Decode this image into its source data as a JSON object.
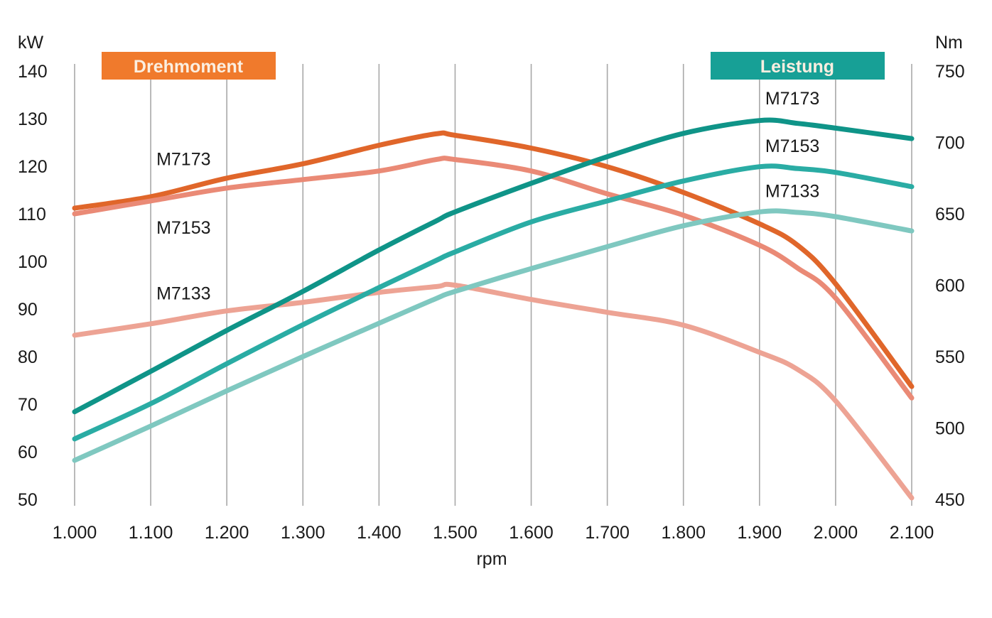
{
  "chart_data": {
    "type": "line",
    "title": "",
    "xlabel": "rpm",
    "x_tick_labels": [
      "1.000",
      "1.100",
      "1.200",
      "1.300",
      "1.400",
      "1.500",
      "1.600",
      "1.700",
      "1.800",
      "1.900",
      "2.000",
      "2.100"
    ],
    "x_ticks": [
      1000,
      1100,
      1200,
      1300,
      1400,
      1500,
      1600,
      1700,
      1800,
      1900,
      2000,
      2100
    ],
    "xlim": [
      1000,
      2100
    ],
    "y_left": {
      "unit_label": "kW",
      "ylim": [
        50,
        140
      ],
      "ticks": [
        50,
        60,
        70,
        80,
        90,
        100,
        110,
        120,
        130,
        140
      ],
      "tick_labels": [
        "50",
        "60",
        "70",
        "80",
        "90",
        "100",
        "110",
        "120",
        "130",
        "140"
      ]
    },
    "y_right": {
      "unit_label": "Nm",
      "ylim": [
        450,
        750
      ],
      "ticks": [
        450,
        500,
        550,
        600,
        650,
        700,
        750
      ],
      "tick_labels": [
        "450",
        "500",
        "550",
        "600",
        "650",
        "700",
        "750"
      ]
    },
    "grid": "vertical",
    "legend": [
      {
        "label": "Drehmoment",
        "color": "#f07a2c",
        "placement": "top-left"
      },
      {
        "label": "Leistung",
        "color": "#17a096",
        "placement": "top-right"
      }
    ],
    "x": [
      1000,
      1100,
      1200,
      1300,
      1400,
      1475,
      1500,
      1600,
      1700,
      1800,
      1900,
      1950,
      2000,
      2100
    ],
    "series": [
      {
        "name": "M7173",
        "group": "Leistung",
        "axis": "left",
        "color": "#0f9488",
        "label_text": "M7173",
        "label_anchor": {
          "x": 1900,
          "y": 133
        },
        "values": [
          68.4,
          76.9,
          85.5,
          93.7,
          102.4,
          108.5,
          110.4,
          116.4,
          122.0,
          126.9,
          129.6,
          129.0,
          128.0,
          125.8
        ]
      },
      {
        "name": "M7153",
        "group": "Leistung",
        "axis": "left",
        "color": "#2aaca4",
        "label_text": "M7153",
        "label_anchor": {
          "x": 1900,
          "y": 123
        },
        "values": [
          62.7,
          70.1,
          78.5,
          86.7,
          94.5,
          100.2,
          102.0,
          108.3,
          112.7,
          116.9,
          119.9,
          119.5,
          118.7,
          115.7
        ]
      },
      {
        "name": "M7133",
        "group": "Leistung",
        "axis": "left",
        "color": "#7fc8c0",
        "label_text": "M7133",
        "label_anchor": {
          "x": 1900,
          "y": 113.5
        },
        "values": [
          58.2,
          65.4,
          72.8,
          80.0,
          87.0,
          92.2,
          93.7,
          98.5,
          103.1,
          107.5,
          110.4,
          110.3,
          109.4,
          106.4
        ]
      },
      {
        "name": "M7173",
        "group": "Drehmoment",
        "axis": "right",
        "color": "#e0662a",
        "label_text": "M7173",
        "label_anchor": {
          "x": 1100,
          "y": 684
        },
        "values": [
          654,
          662,
          675,
          685,
          698,
          706,
          705,
          696,
          683,
          665,
          643,
          628,
          601,
          529
        ]
      },
      {
        "name": "M7153",
        "group": "Drehmoment",
        "axis": "right",
        "color": "#ea8a76",
        "label_text": "M7153",
        "label_anchor": {
          "x": 1100,
          "y": 636
        },
        "values": [
          650,
          659,
          668,
          674,
          680,
          688,
          688,
          680,
          664,
          649,
          628,
          612,
          591,
          521
        ]
      },
      {
        "name": "M7133",
        "group": "Drehmoment",
        "axis": "right",
        "color": "#eda394",
        "label_text": "M7133",
        "label_anchor": {
          "x": 1100,
          "y": 590
        },
        "values": [
          565,
          573,
          582,
          588,
          595,
          599,
          600,
          590,
          581,
          572,
          553,
          541,
          519,
          451
        ]
      }
    ]
  }
}
